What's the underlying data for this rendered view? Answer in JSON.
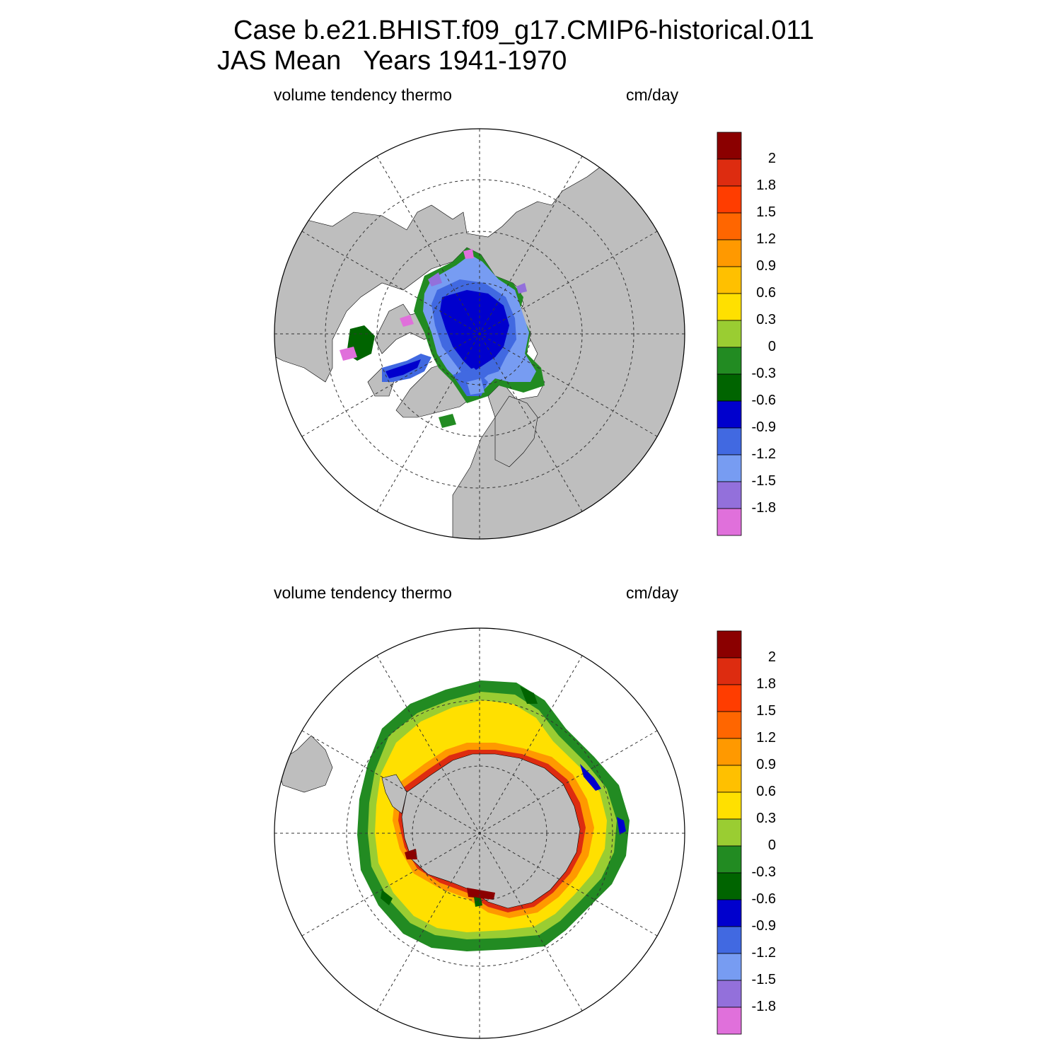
{
  "header": {
    "line1": "Case b.e21.BHIST.f09_g17.CMIP6-historical.011",
    "line2": "JAS Mean   Years 1941-1970"
  },
  "colors": {
    "land": "#bebebe",
    "levels": [
      "#8b0000",
      "#dd2c10",
      "#ff3d00",
      "#ff6600",
      "#ff9900",
      "#ffc000",
      "#ffe000",
      "#9acd32",
      "#228b22",
      "#006400",
      "#0000cd",
      "#4169e1",
      "#779cf2",
      "#9370db",
      "#e070db"
    ]
  },
  "colorbar_labels": [
    "2",
    "1.8",
    "1.5",
    "1.2",
    "0.9",
    "0.6",
    "0.3",
    "0",
    "-0.3",
    "-0.6",
    "-0.9",
    "-1.2",
    "-1.5",
    "-1.8"
  ],
  "panels": [
    {
      "id": "north",
      "variable": "volume tendency thermo",
      "units": "cm/day"
    },
    {
      "id": "south",
      "variable": "volume tendency thermo",
      "units": "cm/day"
    }
  ]
}
